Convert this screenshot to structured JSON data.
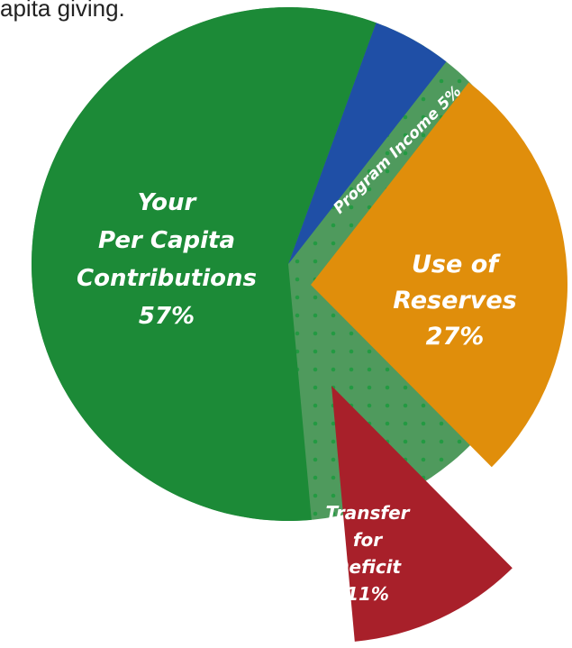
{
  "caption": "apita giving.",
  "chart_data": {
    "type": "pie",
    "title": "",
    "slices": [
      {
        "name": "program-income",
        "label_lines": [
          "Program Income 5%"
        ],
        "value": 5,
        "color": "#1f4fa6"
      },
      {
        "name": "use-of-reserves",
        "label_lines": [
          "Use of",
          "Reserves",
          "27%"
        ],
        "value": 27,
        "color": "#e08e0b"
      },
      {
        "name": "transfer-for-deficit",
        "label_lines": [
          "Transfer",
          "for",
          "Deficit",
          "11%"
        ],
        "value": 11,
        "color": "#a8202a"
      },
      {
        "name": "per-capita-contributions",
        "label_lines": [
          "Your",
          "Per Capita",
          "Contributions",
          "57%"
        ],
        "value": 57,
        "color": "#1c8a37"
      }
    ],
    "background_color": "#4f9a5d",
    "exploded": [
      "use-of-reserves",
      "transfer-for-deficit"
    ],
    "label_color": "#ffffff"
  }
}
